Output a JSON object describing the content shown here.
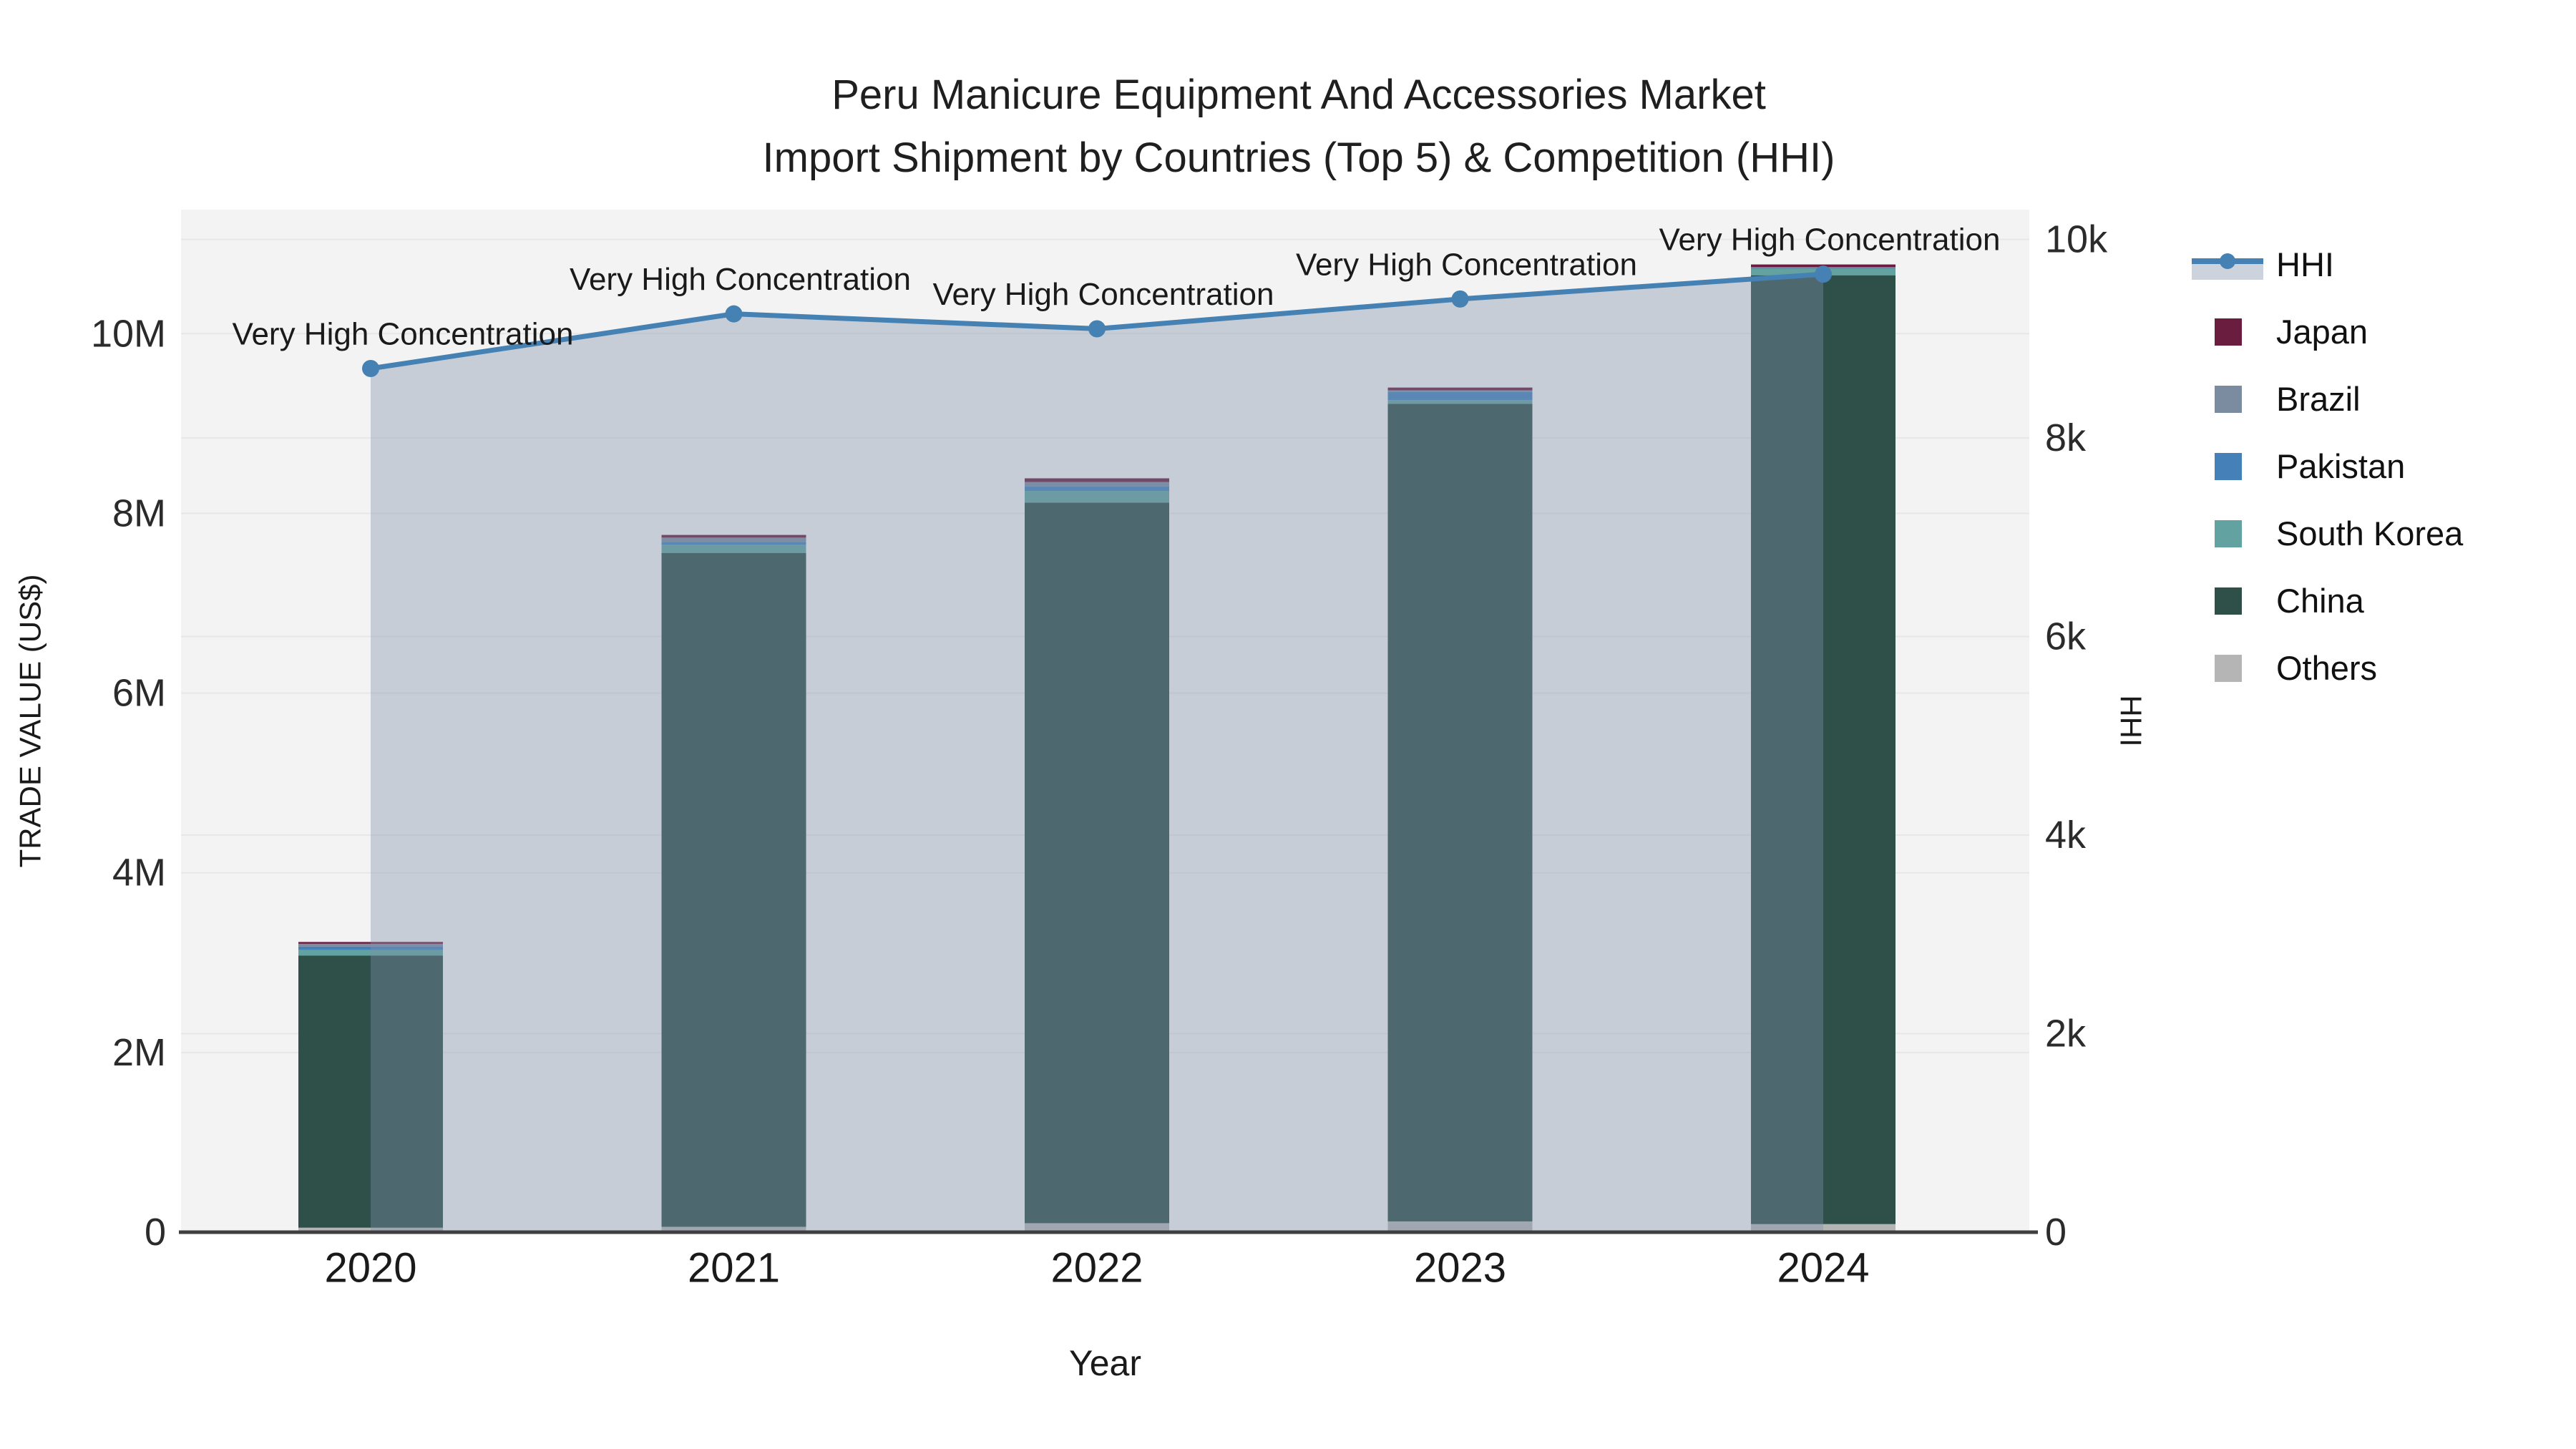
{
  "chart_data": {
    "type": "combo-stacked-bar-line",
    "title": "Peru Manicure Equipment And Accessories Market",
    "subtitle": "Import Shipment by Countries (Top 5) & Competition (HHI)",
    "xlabel": "Year",
    "ylabel_left": "TRADE VALUE (US$)",
    "ylabel_right": "HHI",
    "categories": [
      "2020",
      "2021",
      "2022",
      "2023",
      "2024"
    ],
    "bar_series": [
      {
        "name": "Others",
        "color": "#b5b5b5",
        "values": [
          50000,
          60000,
          100000,
          120000,
          90000
        ]
      },
      {
        "name": "China",
        "color": "#2f5049",
        "values": [
          3030000,
          7500000,
          8020000,
          9100000,
          10560000
        ]
      },
      {
        "name": "South Korea",
        "color": "#62a2a0",
        "values": [
          60000,
          90000,
          130000,
          40000,
          70000
        ]
      },
      {
        "name": "Pakistan",
        "color": "#4581b8",
        "values": [
          40000,
          30000,
          50000,
          90000,
          10000
        ]
      },
      {
        "name": "Brazil",
        "color": "#7b8ba0",
        "values": [
          30000,
          50000,
          50000,
          20000,
          10000
        ]
      },
      {
        "name": "Japan",
        "color": "#6b1d40",
        "values": [
          20000,
          30000,
          40000,
          30000,
          30000
        ]
      }
    ],
    "line_series": {
      "name": "HHI",
      "color": "#4681b4",
      "fill_color": "rgba(127,144,172,0.38)",
      "values": [
        8700,
        9250,
        9100,
        9400,
        9650
      ],
      "point_annotations": [
        "Very High Concentration",
        "Very High Concentration",
        "Very High Concentration",
        "Very High Concentration",
        "Very High Concentration"
      ]
    },
    "axis_left": {
      "range": [
        0,
        11380000
      ],
      "ticks": [
        {
          "label": "0",
          "value": 0
        },
        {
          "label": "2M",
          "value": 2000000
        },
        {
          "label": "4M",
          "value": 4000000
        },
        {
          "label": "6M",
          "value": 6000000
        },
        {
          "label": "8M",
          "value": 8000000
        },
        {
          "label": "10M",
          "value": 10000000
        }
      ]
    },
    "axis_right": {
      "range": [
        0,
        10300
      ],
      "ticks": [
        {
          "label": "0",
          "value": 0
        },
        {
          "label": "2k",
          "value": 2000
        },
        {
          "label": "4k",
          "value": 4000
        },
        {
          "label": "6k",
          "value": 6000
        },
        {
          "label": "8k",
          "value": 8000
        },
        {
          "label": "10k",
          "value": 10000
        }
      ]
    },
    "legend": [
      {
        "label": "HHI",
        "type": "line",
        "color": "#4681b4"
      },
      {
        "label": "Japan",
        "type": "swatch",
        "color": "#6b1d40"
      },
      {
        "label": "Brazil",
        "type": "swatch",
        "color": "#7b8ba0"
      },
      {
        "label": "Pakistan",
        "type": "swatch",
        "color": "#4581b8"
      },
      {
        "label": "South Korea",
        "type": "swatch",
        "color": "#62a2a0"
      },
      {
        "label": "China",
        "type": "swatch",
        "color": "#2f5049"
      },
      {
        "label": "Others",
        "type": "swatch",
        "color": "#b5b5b5"
      }
    ],
    "plot_background": "#f3f3f3",
    "gridline_color": "#e7e7e7",
    "axisline_color": "#3f3f3f",
    "tick_color": "#2b2b2b",
    "annotation_color": "#1a1a1a"
  }
}
